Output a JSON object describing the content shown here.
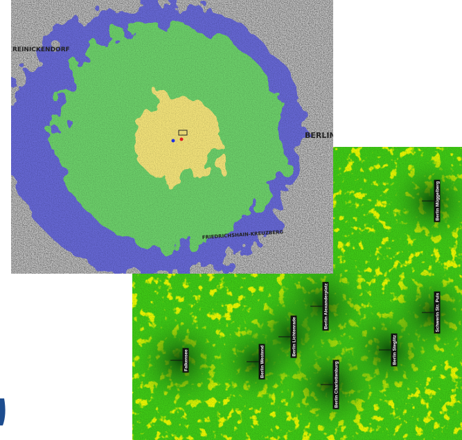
{
  "map1": {
    "labels": [
      "REINICKENDORF",
      "BERLIN",
      "FRIEDRICHSHAIN-KREUZBERG"
    ]
  },
  "map2": {
    "stations": [
      "Berlin Müggelberg",
      "Berlin Alexanderplatz",
      "Berlin Lichtenrade",
      "Berlin Steglitz",
      "Schwerin Str. Puls",
      "Falkensee",
      "Berlin Westend",
      "Berlin Charlottenburg"
    ]
  }
}
